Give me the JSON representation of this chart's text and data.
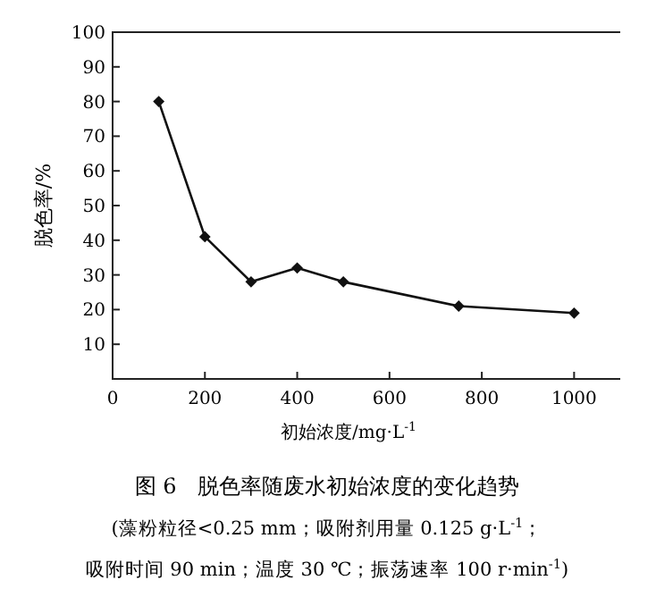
{
  "chart_data": {
    "type": "line",
    "ylabel": "脱色率/%",
    "xlabel": "初始浓度/mg·L$^{-1}$",
    "x": [
      100,
      200,
      300,
      400,
      500,
      750,
      1000
    ],
    "series": [
      {
        "color": "#111111",
        "values": [
          80,
          41,
          28,
          32,
          28,
          21,
          19
        ]
      }
    ],
    "xlim": [
      0,
      1100
    ],
    "ylim": [
      0,
      100
    ],
    "xticks": [
      0,
      200,
      400,
      600,
      800,
      1000
    ],
    "yticks": [
      {
        "value": 0,
        "label": null
      },
      10,
      20,
      30,
      40,
      50,
      60,
      70,
      80,
      90,
      100
    ],
    "marker": "diamond",
    "line_style": "solid",
    "annotations": [
      "图 6　脱色率随废水初始浓度的变化趋势",
      "(藻粉粒径<0.25 mm；吸附剂用量 0.125 g·L$^{-1}$；",
      "吸附时间 90 min；温度 30 ℃；振荡速率 100 r·min$^{-1}$)"
    ]
  }
}
